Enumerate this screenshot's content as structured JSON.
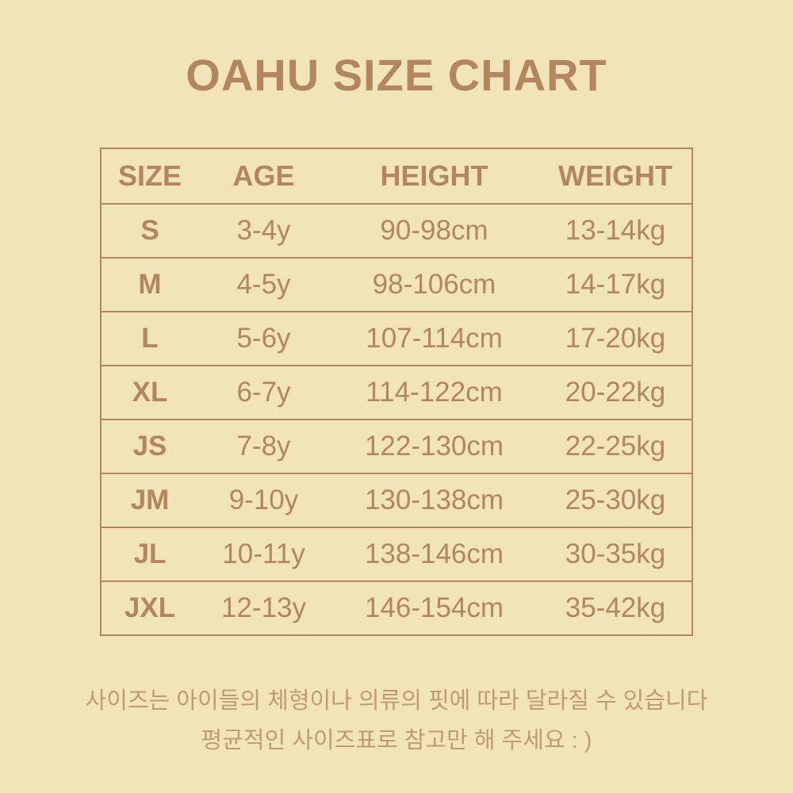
{
  "title": "OAHU SIZE CHART",
  "table": {
    "headers": [
      "SIZE",
      "AGE",
      "HEIGHT",
      "WEIGHT"
    ],
    "rows": [
      [
        "S",
        "3-4y",
        "90-98cm",
        "13-14kg"
      ],
      [
        "M",
        "4-5y",
        "98-106cm",
        "14-17kg"
      ],
      [
        "L",
        "5-6y",
        "107-114cm",
        "17-20kg"
      ],
      [
        "XL",
        "6-7y",
        "114-122cm",
        "20-22kg"
      ],
      [
        "JS",
        "7-8y",
        "122-130cm",
        "22-25kg"
      ],
      [
        "JM",
        "9-10y",
        "130-138cm",
        "25-30kg"
      ],
      [
        "JL",
        "10-11y",
        "138-146cm",
        "30-35kg"
      ],
      [
        "JXL",
        "12-13y",
        "146-154cm",
        "35-42kg"
      ]
    ]
  },
  "notes": [
    "사이즈는 아이들의 체형이나 의류의 핏에 따라 달라질 수 있습니다",
    "평균적인 사이즈표로 참고만 해 주세요 : )"
  ],
  "colors": {
    "background": "#f1e4b9",
    "text": "#b3865f"
  }
}
